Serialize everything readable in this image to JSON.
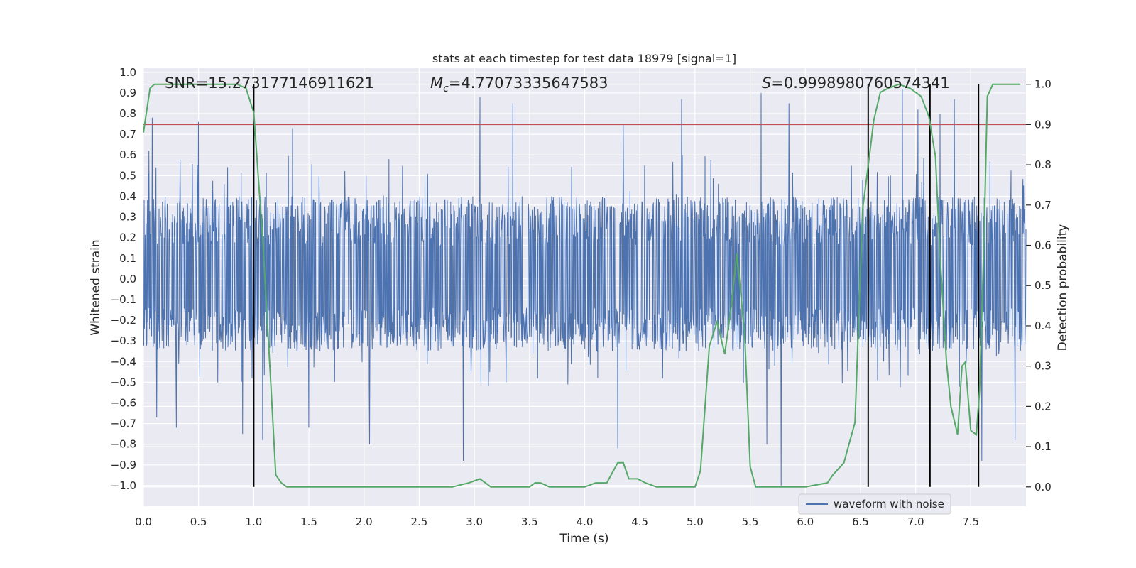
{
  "chart_data": {
    "type": "line",
    "title": "stats at each timestep for test data 18979 [signal=1]",
    "xlabel": "Time (s)",
    "ylabel": "Whitened strain",
    "y2label": "Detection probability",
    "xlim": [
      0.0,
      8.0
    ],
    "ylim": [
      -1.1,
      1.02
    ],
    "y2lim": [
      -0.048,
      1.04
    ],
    "x_ticks": [
      "0.0",
      "0.5",
      "1.0",
      "1.5",
      "2.0",
      "2.5",
      "3.0",
      "3.5",
      "4.0",
      "4.5",
      "5.0",
      "5.5",
      "6.0",
      "6.5",
      "7.0",
      "7.5"
    ],
    "y_ticks": [
      "1.0",
      "0.9",
      "0.8",
      "0.7",
      "0.6",
      "0.5",
      "0.4",
      "0.3",
      "0.2",
      "0.1",
      "0.0",
      "−0.1",
      "−0.2",
      "−0.3",
      "−0.4",
      "−0.5",
      "−0.6",
      "−0.7",
      "−0.8",
      "−0.9",
      "−1.0"
    ],
    "y2_ticks": [
      "1.0",
      "0.9",
      "0.8",
      "0.7",
      "0.6",
      "0.5",
      "0.4",
      "0.3",
      "0.2",
      "0.1",
      "0.0"
    ],
    "annotations": {
      "snr": "SNR=15.273177146911621",
      "mc_symbol": "M",
      "mc_sub": "c",
      "mc_value": "=4.77073335647583",
      "s_symbol": "S",
      "s_value": "=0.9998980760574341"
    },
    "legend": {
      "label": "waveform with noise",
      "position": "lower-right"
    },
    "threshold_line": {
      "axis": "right",
      "value": 0.9,
      "color": "#c44e52"
    },
    "event_markers_x": [
      1.0,
      6.57,
      7.13,
      7.57
    ],
    "waveform": {
      "name": "waveform with noise",
      "color": "#4c72b0",
      "typical_envelope": [
        -0.35,
        0.4
      ],
      "spike_peaks": [
        {
          "x": 0.05,
          "y": 0.62
        },
        {
          "x": 0.08,
          "y": 0.78
        },
        {
          "x": 0.12,
          "y": -0.67
        },
        {
          "x": 0.3,
          "y": -0.72
        },
        {
          "x": 0.5,
          "y": 0.76
        },
        {
          "x": 0.9,
          "y": -0.75
        },
        {
          "x": 1.08,
          "y": -0.78
        },
        {
          "x": 1.35,
          "y": 0.73
        },
        {
          "x": 1.5,
          "y": -0.72
        },
        {
          "x": 2.05,
          "y": 0.74
        },
        {
          "x": 2.05,
          "y": -0.8
        },
        {
          "x": 2.9,
          "y": -0.88
        },
        {
          "x": 3.05,
          "y": 0.88
        },
        {
          "x": 3.35,
          "y": 0.85
        },
        {
          "x": 4.3,
          "y": -0.82
        },
        {
          "x": 4.35,
          "y": 0.75
        },
        {
          "x": 4.88,
          "y": 0.87
        },
        {
          "x": 5.6,
          "y": 0.9
        },
        {
          "x": 5.65,
          "y": -0.8
        },
        {
          "x": 5.78,
          "y": -1.0
        },
        {
          "x": 5.85,
          "y": 0.85
        },
        {
          "x": 6.88,
          "y": 0.92
        },
        {
          "x": 7.02,
          "y": 0.82
        },
        {
          "x": 7.22,
          "y": 0.8
        },
        {
          "x": 7.35,
          "y": 0.87
        },
        {
          "x": 7.6,
          "y": -0.88
        },
        {
          "x": 7.9,
          "y": -0.78
        }
      ]
    },
    "probability": {
      "name": "Detection probability",
      "color": "#55a868",
      "x": [
        0.0,
        0.06,
        0.1,
        0.2,
        0.3,
        0.5,
        0.7,
        0.85,
        0.93,
        1.0,
        1.08,
        1.15,
        1.2,
        1.25,
        1.3,
        1.4,
        1.5,
        2.0,
        2.5,
        2.8,
        2.95,
        3.05,
        3.15,
        3.4,
        3.5,
        3.55,
        3.6,
        3.68,
        3.8,
        4.0,
        4.1,
        4.2,
        4.3,
        4.35,
        4.4,
        4.48,
        4.55,
        4.65,
        4.7,
        4.9,
        5.0,
        5.05,
        5.13,
        5.2,
        5.27,
        5.33,
        5.38,
        5.45,
        5.5,
        5.55,
        5.7,
        5.8,
        6.0,
        6.2,
        6.25,
        6.35,
        6.45,
        6.52,
        6.58,
        6.62,
        6.68,
        6.75,
        6.85,
        6.95,
        7.05,
        7.12,
        7.18,
        7.22,
        7.28,
        7.32,
        7.38,
        7.42,
        7.45,
        7.5,
        7.55,
        7.58,
        7.62,
        7.65,
        7.7,
        7.8,
        7.95
      ],
      "values": [
        0.88,
        0.99,
        1.0,
        1.0,
        1.0,
        1.0,
        1.0,
        1.0,
        0.99,
        0.93,
        0.62,
        0.28,
        0.03,
        0.01,
        0.0,
        0.0,
        0.0,
        0.0,
        0.0,
        0.0,
        0.01,
        0.02,
        0.0,
        0.0,
        0.0,
        0.01,
        0.01,
        0.0,
        0.0,
        0.0,
        0.01,
        0.01,
        0.06,
        0.06,
        0.02,
        0.02,
        0.01,
        0.0,
        0.0,
        0.0,
        0.0,
        0.04,
        0.35,
        0.41,
        0.33,
        0.45,
        0.58,
        0.38,
        0.05,
        0.0,
        0.0,
        0.0,
        0.0,
        0.01,
        0.03,
        0.06,
        0.16,
        0.69,
        0.82,
        0.91,
        0.98,
        0.99,
        1.0,
        0.99,
        0.97,
        0.92,
        0.82,
        0.58,
        0.31,
        0.2,
        0.13,
        0.3,
        0.31,
        0.14,
        0.13,
        0.24,
        0.62,
        0.97,
        1.0,
        1.0,
        1.0
      ]
    }
  }
}
